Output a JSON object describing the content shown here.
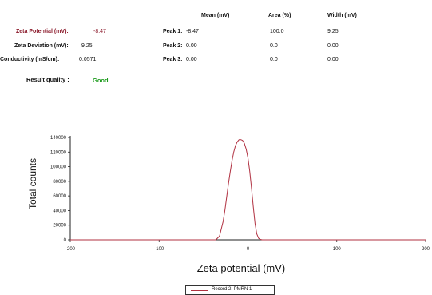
{
  "summary": {
    "zeta_potential": {
      "label": "Zeta Potential (mV):",
      "value": "-8.47",
      "color": "#8b1a2b"
    },
    "zeta_deviation": {
      "label": "Zeta Deviation (mV):",
      "value": "9.25"
    },
    "conductivity": {
      "label": "Conductivity (mS/cm):",
      "value": "0.0571"
    },
    "result_quality": {
      "label": "Result quality :",
      "value": "Good",
      "color": "#1a9a1a"
    }
  },
  "peaks_table": {
    "headers": [
      "Mean (mV)",
      "Area (%)",
      "Width (mV)"
    ],
    "rows": [
      {
        "label": "Peak 1:",
        "mean": "-8.47",
        "area": "100.0",
        "width": "9.25"
      },
      {
        "label": "Peak 2:",
        "mean": "0.00",
        "area": "0.0",
        "width": "0.00"
      },
      {
        "label": "Peak 3:",
        "mean": "0.00",
        "area": "0.0",
        "width": "0.00"
      }
    ]
  },
  "chart_data": {
    "type": "line",
    "title": "",
    "xlabel": "Zeta potential (mV)",
    "ylabel": "Total counts",
    "xlim": [
      -200,
      200
    ],
    "ylim": [
      0,
      140000
    ],
    "xticks": [
      -200,
      -100,
      0,
      100,
      200
    ],
    "yticks": [
      0,
      20000,
      40000,
      60000,
      80000,
      100000,
      120000,
      140000
    ],
    "grid": false,
    "legend_position": "bottom-center",
    "series": [
      {
        "name": "Record 2: PMRN 1",
        "color": "#b03040",
        "x": [
          -200,
          -36,
          -32,
          -28,
          -26,
          -24,
          -22,
          -20,
          -18,
          -16,
          -14,
          -12,
          -10,
          -8,
          -6,
          -4,
          -2,
          0,
          2,
          4,
          6,
          8,
          10,
          12,
          14,
          16,
          200
        ],
        "y": [
          0,
          0,
          5000,
          25000,
          40000,
          58000,
          76000,
          93000,
          108000,
          120000,
          129000,
          134000,
          137000,
          137000,
          136000,
          132000,
          124000,
          112000,
          94000,
          70000,
          45000,
          22000,
          8000,
          2000,
          500,
          0,
          0
        ]
      }
    ]
  }
}
